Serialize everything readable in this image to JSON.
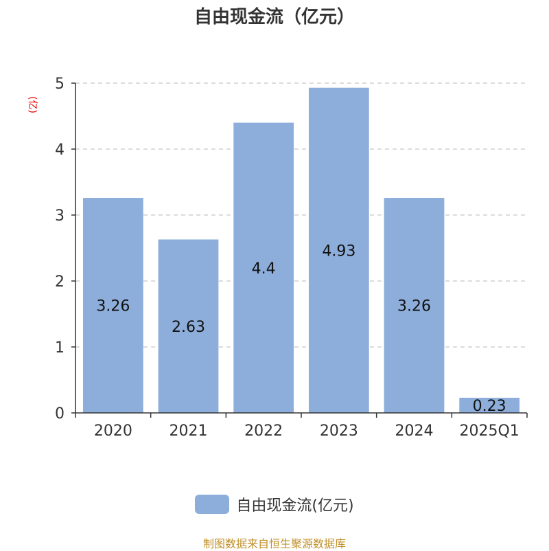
{
  "chart_data": {
    "type": "bar",
    "title": "自由现金流（亿元）",
    "ylabel": "(亿)",
    "categories": [
      "2020",
      "2021",
      "2022",
      "2023",
      "2024",
      "2025Q1"
    ],
    "series": [
      {
        "name": "自由现金流(亿元)",
        "values": [
          3.26,
          2.63,
          4.4,
          4.93,
          3.26,
          0.23
        ]
      }
    ],
    "data_labels": [
      "3.26",
      "2.63",
      "4.4",
      "4.93",
      "3.26",
      "0.23"
    ],
    "yticks": [
      "0",
      "1",
      "2",
      "3",
      "4",
      "5"
    ],
    "ylim": [
      0,
      5
    ],
    "grid": true,
    "legend_position": "bottom",
    "bar_color": "#8daedb"
  },
  "source": "制图数据来自恒生聚源数据库"
}
